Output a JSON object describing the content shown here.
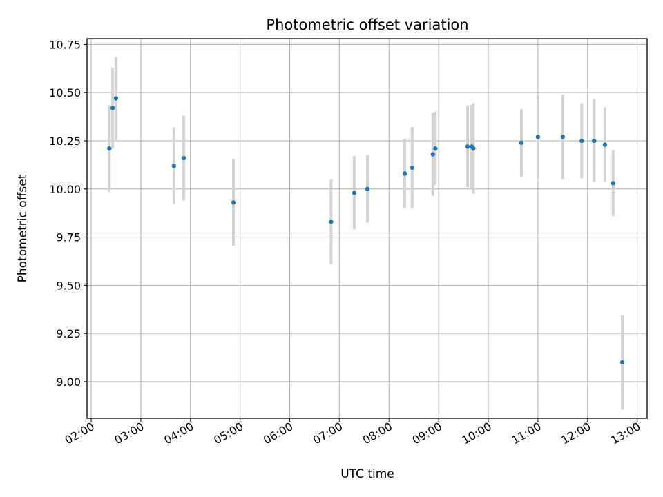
{
  "chart_data": {
    "type": "scatter",
    "title": "Photometric offset variation",
    "xlabel": "UTC time",
    "ylabel": "Photometric offset",
    "x_ticks": [
      "02:00",
      "03:00",
      "04:00",
      "05:00",
      "06:00",
      "07:00",
      "08:00",
      "09:00",
      "10:00",
      "11:00",
      "12:00",
      "13:00"
    ],
    "y_ticks": [
      "9.00",
      "9.25",
      "9.50",
      "9.75",
      "10.00",
      "10.25",
      "10.50",
      "10.75"
    ],
    "xlim": [
      "01:55",
      "13:12"
    ],
    "ylim": [
      8.81,
      10.78
    ],
    "grid": true,
    "colors": {
      "point": "#1f77b4",
      "error_bar": "#d3d3d3",
      "grid": "#b0b0b0"
    },
    "points": [
      {
        "x": "02:22",
        "y": 10.21,
        "err": 0.225
      },
      {
        "x": "02:26",
        "y": 10.42,
        "err": 0.21
      },
      {
        "x": "02:30",
        "y": 10.47,
        "err": 0.215
      },
      {
        "x": "03:40",
        "y": 10.12,
        "err": 0.2
      },
      {
        "x": "03:52",
        "y": 10.16,
        "err": 0.22
      },
      {
        "x": "04:52",
        "y": 9.93,
        "err": 0.225
      },
      {
        "x": "06:50",
        "y": 9.83,
        "err": 0.22
      },
      {
        "x": "07:18",
        "y": 9.98,
        "err": 0.19
      },
      {
        "x": "07:34",
        "y": 10.0,
        "err": 0.175
      },
      {
        "x": "08:19",
        "y": 10.08,
        "err": 0.18
      },
      {
        "x": "08:28",
        "y": 10.11,
        "err": 0.21
      },
      {
        "x": "08:53",
        "y": 10.18,
        "err": 0.215
      },
      {
        "x": "08:56",
        "y": 10.21,
        "err": 0.19
      },
      {
        "x": "09:35",
        "y": 10.22,
        "err": 0.21
      },
      {
        "x": "09:40",
        "y": 10.22,
        "err": 0.215
      },
      {
        "x": "09:42",
        "y": 10.21,
        "err": 0.235
      },
      {
        "x": "10:40",
        "y": 10.24,
        "err": 0.175
      },
      {
        "x": "11:00",
        "y": 10.27,
        "err": 0.215
      },
      {
        "x": "11:30",
        "y": 10.27,
        "err": 0.22
      },
      {
        "x": "11:53",
        "y": 10.25,
        "err": 0.195
      },
      {
        "x": "12:08",
        "y": 10.25,
        "err": 0.215
      },
      {
        "x": "12:21",
        "y": 10.23,
        "err": 0.195
      },
      {
        "x": "12:31",
        "y": 10.03,
        "err": 0.17
      },
      {
        "x": "12:42",
        "y": 9.1,
        "err": 0.245
      }
    ]
  }
}
